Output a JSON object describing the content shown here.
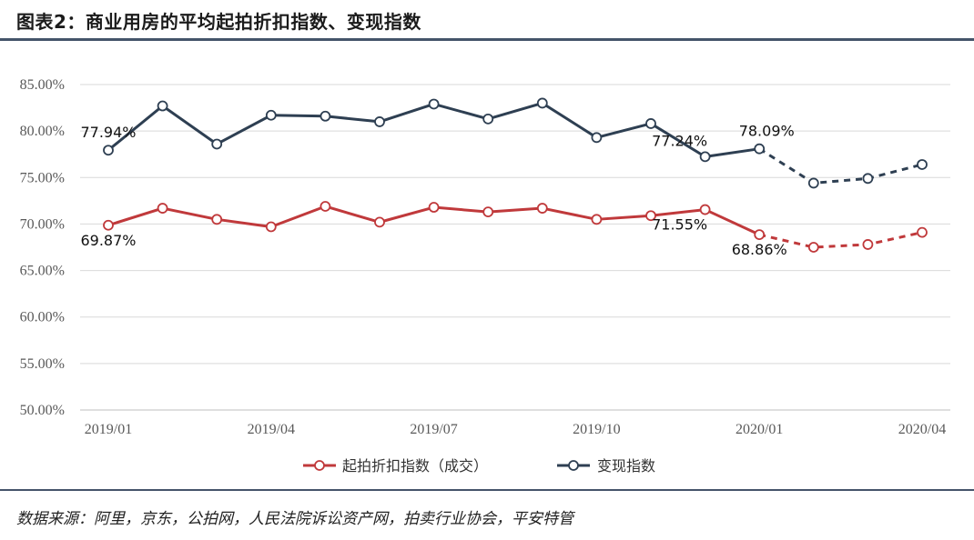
{
  "header": {
    "title": "图表2：商业用房的平均起拍折扣指数、变现指数"
  },
  "footer": {
    "source": "数据来源：阿里，京东，公拍网，人民法院诉讼资产网，拍卖行业协会，平安特管"
  },
  "chart_data": {
    "type": "line",
    "categories": [
      "2019/01",
      "2019/02",
      "2019/03",
      "2019/04",
      "2019/05",
      "2019/06",
      "2019/07",
      "2019/08",
      "2019/09",
      "2019/10",
      "2019/11",
      "2019/12",
      "2020/01",
      "2020/02",
      "2020/03",
      "2020/04"
    ],
    "x_tick_labels": [
      "2019/01",
      "2019/04",
      "2019/07",
      "2019/10",
      "2020/01",
      "2020/04"
    ],
    "x_tick_indices": [
      0,
      3,
      6,
      9,
      12,
      15
    ],
    "ylim": [
      50,
      85
    ],
    "y_ticks": [
      50,
      55,
      60,
      65,
      70,
      75,
      80,
      85
    ],
    "y_tick_labels": [
      "50.00%",
      "55.00%",
      "60.00%",
      "65.00%",
      "70.00%",
      "75.00%",
      "80.00%",
      "85.00%"
    ],
    "grid": true,
    "legend_position": "bottom",
    "dashed_from_index": 12,
    "series": [
      {
        "name": "起拍折扣指数（成交）",
        "color": "#c0393b",
        "values": [
          69.87,
          71.7,
          70.5,
          69.7,
          71.9,
          70.2,
          71.8,
          71.3,
          71.7,
          70.5,
          70.9,
          71.55,
          68.86,
          67.5,
          67.8,
          69.1
        ],
        "labels": [
          {
            "index": 0,
            "text": "69.87%",
            "pos": "below"
          },
          {
            "index": 11,
            "text": "71.55%",
            "pos": "below-left"
          },
          {
            "index": 12,
            "text": "68.86%",
            "pos": "below"
          }
        ]
      },
      {
        "name": "变现指数",
        "color": "#2e3f52",
        "values": [
          77.94,
          82.7,
          78.6,
          81.7,
          81.6,
          81.0,
          82.9,
          81.3,
          83.0,
          79.3,
          80.8,
          77.24,
          78.09,
          74.4,
          74.9,
          76.4
        ],
        "labels": [
          {
            "index": 0,
            "text": "77.94%",
            "pos": "above"
          },
          {
            "index": 11,
            "text": "77.24%",
            "pos": "above-left"
          },
          {
            "index": 12,
            "text": "78.09%",
            "pos": "above-right"
          }
        ]
      }
    ]
  }
}
